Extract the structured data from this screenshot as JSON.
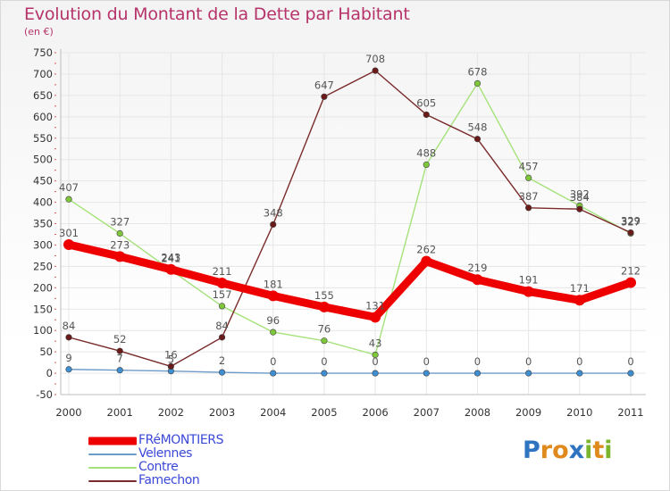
{
  "title": "Evolution du Montant de la Dette par Habitant",
  "subtitle": "(en €)",
  "logo": {
    "text": "Proxiti",
    "letters": [
      {
        "ch": "P",
        "color": "#2f74c0"
      },
      {
        "ch": "r",
        "color": "#e08a1e"
      },
      {
        "ch": "o",
        "color": "#e08a1e"
      },
      {
        "ch": "x",
        "color": "#2f74c0"
      },
      {
        "ch": "i",
        "color": "#7bb52b"
      },
      {
        "ch": "t",
        "color": "#e08a1e"
      },
      {
        "ch": "i",
        "color": "#7bb52b"
      }
    ]
  },
  "chart_data": {
    "type": "line",
    "title": "Evolution du Montant de la Dette par Habitant",
    "ylabel": "(en €)",
    "x": [
      2000,
      2001,
      2002,
      2003,
      2004,
      2005,
      2006,
      2007,
      2008,
      2009,
      2010,
      2011
    ],
    "ylim": [
      -50,
      750
    ],
    "yticks": [
      -50,
      0,
      50,
      100,
      150,
      200,
      250,
      300,
      350,
      400,
      450,
      500,
      550,
      600,
      650,
      700,
      750
    ],
    "grid": true,
    "legend_position": "bottom-left",
    "series": [
      {
        "name": "FRéMONTIERS",
        "color": "#ee0000",
        "marker": "#ee0000",
        "values": [
          301,
          273,
          243,
          211,
          181,
          155,
          131,
          262,
          219,
          191,
          171,
          212
        ]
      },
      {
        "name": "Velennes",
        "color": "#6c9bc9",
        "marker": "#3e8ed2",
        "values": [
          9,
          7,
          5,
          2,
          0,
          0,
          0,
          0,
          0,
          0,
          0,
          0
        ]
      },
      {
        "name": "Contre",
        "color": "#a5e27a",
        "marker": "#7ec63a",
        "values": [
          407,
          327,
          241,
          157,
          96,
          76,
          43,
          488,
          678,
          457,
          392,
          327
        ]
      },
      {
        "name": "Famechon",
        "color": "#7a2b2b",
        "marker": "#6b1a1a",
        "values": [
          84,
          52,
          16,
          84,
          348,
          647,
          708,
          605,
          548,
          387,
          384,
          329
        ]
      }
    ]
  }
}
